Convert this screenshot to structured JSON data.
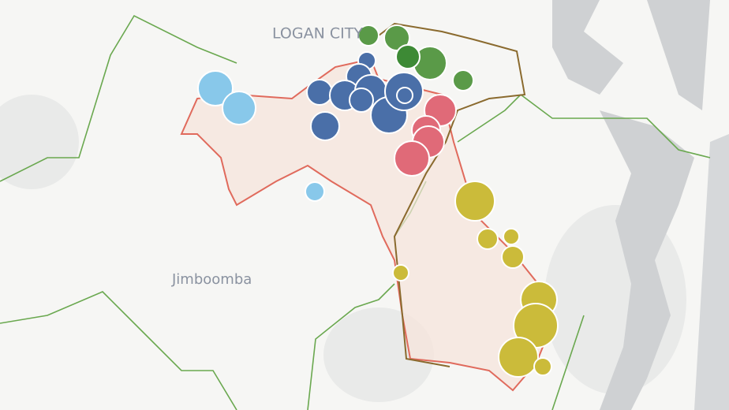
{
  "map": {
    "labels": [
      "LOGAN CITY",
      "Jimboomba"
    ]
  }
}
